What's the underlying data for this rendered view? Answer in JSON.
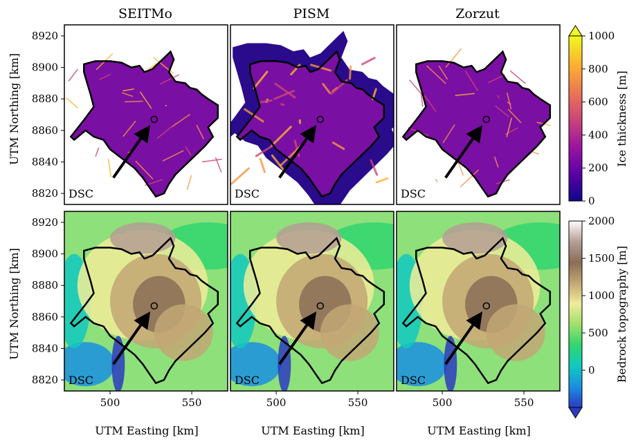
{
  "figure": {
    "columns": [
      "SEITMo",
      "PISM",
      "Zorzut"
    ],
    "ylabel": "UTM Northing [km]",
    "xlabel": "UTM Easting [km]",
    "marker_label": "DSC",
    "colors": {
      "outline": "#000000",
      "plasma_stops": [
        "#0d0887",
        "#5c01a6",
        "#9c179e",
        "#cc4778",
        "#ed7953",
        "#fdb42f",
        "#f0f921"
      ],
      "terrain_stops": [
        "#2a3bc0",
        "#1a8fe0",
        "#10c9c0",
        "#30d56f",
        "#9de06a",
        "#f1ec99",
        "#c2a774",
        "#8a6e57",
        "#b59e94",
        "#ffffff"
      ]
    }
  },
  "chart_data": [
    {
      "type": "heatmap",
      "title": "SEITMo",
      "row": "Ice thickness",
      "xlabel": "",
      "ylabel": "UTM Northing [km]",
      "x_ticks": [
        500,
        550
      ],
      "y_ticks": [
        8820,
        8840,
        8860,
        8880,
        8900,
        8920
      ],
      "xlim": [
        472,
        572
      ],
      "ylim": [
        8813,
        8927
      ],
      "colorbar": {
        "label": "Ice thickness [m]",
        "range": [
          0,
          1000
        ],
        "ticks": [
          0,
          200,
          400,
          600,
          800,
          1000
        ],
        "colormap": "plasma",
        "extend": "max"
      }
    },
    {
      "type": "heatmap",
      "title": "PISM",
      "row": "Ice thickness",
      "x_ticks": [
        500,
        550
      ],
      "y_ticks": [
        8820,
        8840,
        8860,
        8880,
        8900,
        8920
      ],
      "xlim": [
        472,
        572
      ],
      "ylim": [
        8813,
        8927
      ],
      "colorbar": {
        "label": "Ice thickness [m]",
        "range": [
          0,
          1000
        ],
        "ticks": [
          0,
          200,
          400,
          600,
          800,
          1000
        ],
        "colormap": "plasma",
        "extend": "max"
      }
    },
    {
      "type": "heatmap",
      "title": "Zorzut",
      "row": "Ice thickness",
      "x_ticks": [
        500,
        550
      ],
      "y_ticks": [
        8820,
        8840,
        8860,
        8880,
        8900,
        8920
      ],
      "xlim": [
        472,
        572
      ],
      "ylim": [
        8813,
        8927
      ],
      "colorbar": {
        "label": "Ice thickness [m]",
        "range": [
          0,
          1000
        ],
        "ticks": [
          0,
          200,
          400,
          600,
          800,
          1000
        ],
        "colormap": "plasma",
        "extend": "max"
      }
    },
    {
      "type": "heatmap",
      "title": "",
      "row": "Bedrock topography",
      "xlabel": "UTM Easting [km]",
      "ylabel": "UTM Northing [km]",
      "x_ticks": [
        500,
        550
      ],
      "y_ticks": [
        8820,
        8840,
        8860,
        8880,
        8900,
        8920
      ],
      "xlim": [
        472,
        572
      ],
      "ylim": [
        8813,
        8927
      ],
      "colorbar": {
        "label": "Bedrock topography [m]",
        "range": [
          -500,
          2000
        ],
        "ticks": [
          0,
          500,
          1000,
          1500,
          2000
        ],
        "colormap": "terrain",
        "extend": "min"
      }
    },
    {
      "type": "heatmap",
      "row": "Bedrock topography",
      "xlabel": "UTM Easting [km]",
      "x_ticks": [
        500,
        550
      ],
      "xlim": [
        472,
        572
      ],
      "ylim": [
        8813,
        8927
      ],
      "colorbar": {
        "label": "Bedrock topography [m]",
        "range": [
          -500,
          2000
        ],
        "ticks": [
          0,
          500,
          1000,
          1500,
          2000
        ],
        "colormap": "terrain",
        "extend": "min"
      }
    },
    {
      "type": "heatmap",
      "row": "Bedrock topography",
      "xlabel": "UTM Easting [km]",
      "x_ticks": [
        500,
        550
      ],
      "xlim": [
        472,
        572
      ],
      "ylim": [
        8813,
        8927
      ],
      "colorbar": {
        "label": "Bedrock topography [m]",
        "range": [
          -500,
          2000
        ],
        "ticks": [
          0,
          500,
          1000,
          1500,
          2000
        ],
        "colormap": "terrain",
        "extend": "min"
      }
    }
  ],
  "annotation": {
    "dsc_point": {
      "x": 527,
      "y": 8867
    },
    "arrow_tail": {
      "x": 502,
      "y": 8830
    }
  }
}
